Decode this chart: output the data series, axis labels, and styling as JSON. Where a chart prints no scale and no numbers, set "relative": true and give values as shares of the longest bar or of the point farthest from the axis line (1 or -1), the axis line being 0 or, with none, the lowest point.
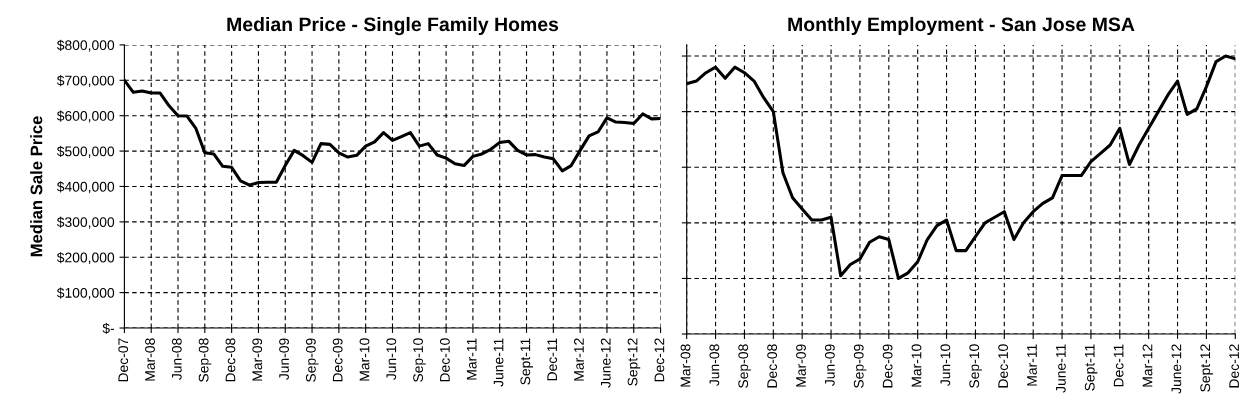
{
  "chart_data": [
    {
      "type": "line",
      "title": "Median Price - Single Family Homes",
      "ylabel": "Median Sale Price",
      "color": "#000000",
      "grid": true,
      "categories": [
        "Dec-07",
        null,
        null,
        "Mar-08",
        null,
        null,
        "Jun-08",
        null,
        null,
        "Sep-08",
        null,
        null,
        "Dec-08",
        null,
        null,
        "Mar-09",
        null,
        null,
        "Jun-09",
        null,
        null,
        "Sep-09",
        null,
        null,
        "Dec-09",
        null,
        null,
        "Mar-10",
        null,
        null,
        "Jun-10",
        null,
        null,
        "Sep-10",
        null,
        null,
        "Dec-10",
        null,
        null,
        "Mar-11",
        null,
        null,
        "June-11",
        null,
        null,
        "Sept-11",
        null,
        null,
        "Dec-11",
        null,
        null,
        "Mar-12",
        null,
        null,
        "June-12",
        null,
        null,
        "Sept-12",
        null,
        null,
        "Dec-12"
      ],
      "values": [
        700000,
        666000,
        670000,
        664000,
        664000,
        628000,
        600000,
        599000,
        564000,
        495000,
        492000,
        457000,
        454000,
        416000,
        404000,
        411000,
        412000,
        412000,
        459000,
        502000,
        487000,
        468000,
        521000,
        519000,
        495000,
        483000,
        488000,
        514000,
        526000,
        552000,
        530000,
        541000,
        552000,
        514000,
        521000,
        489000,
        480000,
        464000,
        459000,
        485000,
        492000,
        505000,
        524000,
        528000,
        502000,
        489000,
        490000,
        483000,
        478000,
        444000,
        459000,
        502000,
        543000,
        554000,
        594000,
        582000,
        581000,
        578000,
        605000,
        591000,
        592000
      ],
      "ylim": [
        0,
        800000
      ],
      "yticks": [
        {
          "value": 0,
          "label": "$-"
        },
        {
          "value": 100000,
          "label": "$100,000"
        },
        {
          "value": 200000,
          "label": "$200,000"
        },
        {
          "value": 300000,
          "label": "$300,000"
        },
        {
          "value": 400000,
          "label": "$400,000"
        },
        {
          "value": 500000,
          "label": "$500,000"
        },
        {
          "value": 600000,
          "label": "$600,000"
        },
        {
          "value": 700000,
          "label": "$700,000"
        },
        {
          "value": 800000,
          "label": "$800,000"
        }
      ]
    },
    {
      "type": "line",
      "title": "Monthly Employment - San Jose MSA",
      "color": "#000000",
      "grid": true,
      "relative": true,
      "tick_labels": "x",
      "categories": [
        "Mar-08",
        null,
        null,
        "Jun-08",
        null,
        null,
        "Sep-08",
        null,
        null,
        "Dec-08",
        null,
        null,
        "Mar-09",
        null,
        null,
        "Jun-09",
        null,
        null,
        "Sep-09",
        null,
        null,
        "Dec-09",
        null,
        null,
        "Mar-10",
        null,
        null,
        "Jun-10",
        null,
        null,
        "Sep-10",
        null,
        null,
        "Dec-10",
        null,
        null,
        "Mar-11",
        null,
        null,
        "June-11",
        null,
        null,
        "Sept-11",
        null,
        null,
        "Dec-11",
        null,
        null,
        "Mar-12",
        null,
        null,
        "June-12",
        null,
        null,
        "Sept-12",
        null,
        null,
        "Dec-12"
      ],
      "values": [
        0.9,
        0.91,
        0.94,
        0.96,
        0.92,
        0.96,
        0.94,
        0.91,
        0.85,
        0.8,
        0.58,
        0.49,
        0.45,
        0.41,
        0.41,
        0.42,
        0.21,
        0.25,
        0.27,
        0.33,
        0.35,
        0.34,
        0.2,
        0.22,
        0.26,
        0.34,
        0.39,
        0.41,
        0.3,
        0.3,
        0.35,
        0.4,
        0.42,
        0.44,
        0.34,
        0.4,
        0.44,
        0.47,
        0.49,
        0.57,
        0.57,
        0.57,
        0.62,
        0.65,
        0.68,
        0.74,
        0.61,
        0.68,
        0.74,
        0.8,
        0.86,
        0.91,
        0.79,
        0.81,
        0.89,
        0.98,
        1,
        0.99
      ]
    }
  ]
}
